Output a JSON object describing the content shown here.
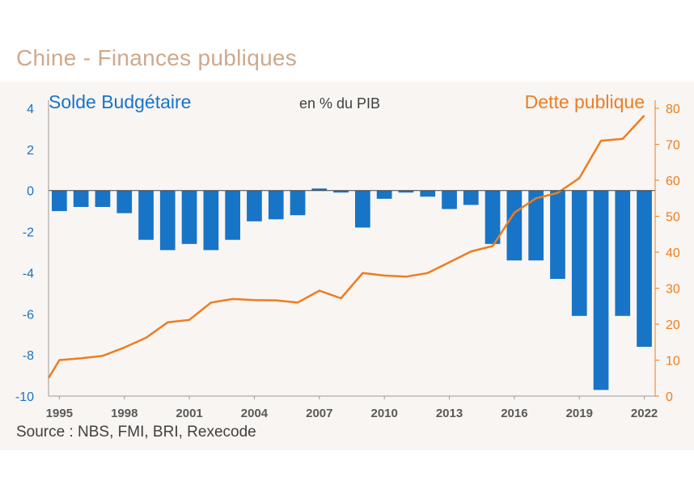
{
  "title": "Chine - Finances publiques",
  "source": "Source : NBS, FMI, BRI, Rexecode",
  "colors": {
    "bars": "#1874c6",
    "line": "#ed7d20",
    "title": "#cfa98b",
    "panel": "#f8f5f2"
  },
  "chart_data": {
    "type": "bar+line",
    "left_label": "Solde Budgétaire",
    "center_label": "en % du PIB",
    "right_label": "Dette publique",
    "x_tick_labels": [
      "1995",
      "1998",
      "2001",
      "2004",
      "2007",
      "2010",
      "2013",
      "2016",
      "2019",
      "2022"
    ],
    "left_axis": {
      "min": -10,
      "max": 4,
      "ticks": [
        "4",
        "2",
        "0",
        "-2",
        "-4",
        "-6",
        "-8",
        "-10"
      ]
    },
    "right_axis": {
      "min": 0,
      "max": 80,
      "ticks": [
        "80",
        "70",
        "60",
        "50",
        "40",
        "30",
        "20",
        "10",
        "0"
      ]
    },
    "series": [
      {
        "name": "Solde Budgétaire",
        "type": "bar",
        "axis": "left",
        "x": [
          1995,
          1996,
          1997,
          1998,
          1999,
          2000,
          2001,
          2002,
          2003,
          2004,
          2005,
          2006,
          2007,
          2008,
          2009,
          2010,
          2011,
          2012,
          2013,
          2014,
          2015,
          2016,
          2017,
          2018,
          2019,
          2020,
          2021,
          2022
        ],
        "values": [
          -1.0,
          -0.8,
          -0.8,
          -1.1,
          -2.4,
          -2.9,
          -2.6,
          -2.9,
          -2.4,
          -1.5,
          -1.4,
          -1.2,
          0.1,
          -0.1,
          -1.8,
          -0.4,
          -0.1,
          -0.3,
          -0.9,
          -0.7,
          -2.6,
          -3.4,
          -3.4,
          -4.3,
          -6.1,
          -9.7,
          -6.1,
          -7.6
        ]
      },
      {
        "name": "Dette publique",
        "type": "line",
        "axis": "right",
        "x": [
          1994.5,
          1995,
          1996,
          1997,
          1998,
          1999,
          2000,
          2001,
          2002,
          2003,
          2004,
          2005,
          2006,
          2007,
          2008,
          2009,
          2010,
          2011,
          2012,
          2013,
          2014,
          2015,
          2016,
          2017,
          2018,
          2019,
          2020,
          2021,
          2022
        ],
        "values": [
          5,
          10,
          10.5,
          11.2,
          13.5,
          16.2,
          20.5,
          21.2,
          26,
          27,
          26.7,
          26.6,
          26,
          29.3,
          27.2,
          34.2,
          33.5,
          33.2,
          34.2,
          37.2,
          40.2,
          41.7,
          51,
          55,
          56.5,
          60.6,
          71,
          71.5,
          78
        ]
      }
    ]
  }
}
